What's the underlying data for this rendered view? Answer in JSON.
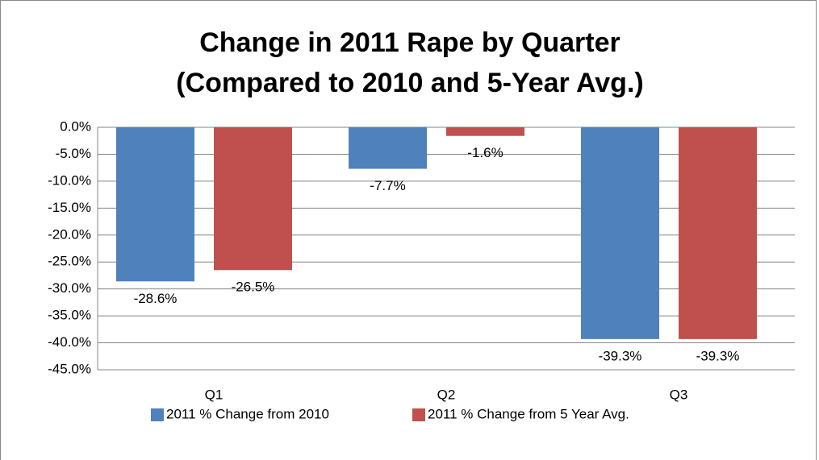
{
  "chart_data": {
    "type": "bar",
    "title": [
      "Change in 2011 Rape by Quarter",
      "(Compared to 2010 and 5-Year Avg.)"
    ],
    "categories": [
      "Q1",
      "Q2",
      "Q3"
    ],
    "series": [
      {
        "name": "2011 % Change from 2010",
        "color": "#4f81bd",
        "values": [
          -28.6,
          -7.7,
          -39.3
        ],
        "value_labels": [
          "-28.6%",
          "-7.7%",
          "-39.3%"
        ]
      },
      {
        "name": "2011 % Change from 5 Year Avg.",
        "color": "#c0504d",
        "values": [
          -26.5,
          -1.6,
          -39.3
        ],
        "value_labels": [
          "-26.5%",
          "-1.6%",
          "-39.3%"
        ]
      }
    ],
    "ylim": [
      -45,
      0
    ],
    "yticks": [
      {
        "value": 0,
        "label": "0.0%"
      },
      {
        "value": -5,
        "label": "-5.0%"
      },
      {
        "value": -10,
        "label": "-10.0%"
      },
      {
        "value": -15,
        "label": "-15.0%"
      },
      {
        "value": -20,
        "label": "-20.0%"
      },
      {
        "value": -25,
        "label": "-25.0%"
      },
      {
        "value": -30,
        "label": "-30.0%"
      },
      {
        "value": -35,
        "label": "-35.0%"
      },
      {
        "value": -40,
        "label": "-40.0%"
      },
      {
        "value": -45,
        "label": "-45.0%"
      }
    ],
    "grid": true,
    "legend": "bottom"
  }
}
